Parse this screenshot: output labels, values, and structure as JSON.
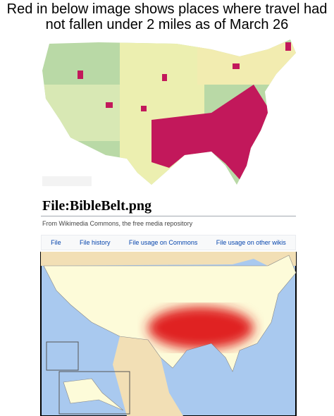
{
  "caption": "Red in below image shows places where travel had not fallen under 2 miles as of March 26",
  "wiki": {
    "title": "File:BibleBelt.png",
    "subtitle": "From Wikimedia Commons, the free media repository",
    "tabs": [
      "File",
      "File history",
      "File usage on Commons",
      "File usage on other wikis"
    ]
  }
}
